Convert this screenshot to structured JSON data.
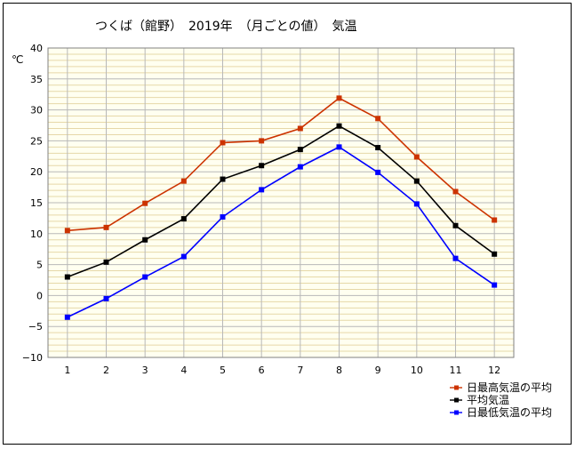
{
  "chart_data": {
    "type": "line",
    "title": "つくば（館野）　2019年　（月ごとの値）　気温",
    "ylabel": "℃",
    "xlabel": "",
    "categories": [
      "1",
      "2",
      "3",
      "4",
      "5",
      "6",
      "7",
      "8",
      "9",
      "10",
      "11",
      "12"
    ],
    "ylim": [
      -10,
      40
    ],
    "yticks": [
      40,
      35,
      30,
      25,
      20,
      15,
      10,
      5,
      0,
      -5,
      -10
    ],
    "grid": true,
    "legend_position": "bottom-right",
    "series": [
      {
        "name": "日最高気温の平均",
        "color": "#cc3300",
        "values": [
          10.5,
          11.0,
          14.9,
          18.5,
          24.7,
          25.0,
          27.0,
          31.9,
          28.6,
          22.4,
          16.8,
          12.2
        ]
      },
      {
        "name": "平均気温",
        "color": "#000000",
        "values": [
          3.0,
          5.4,
          9.0,
          12.4,
          18.8,
          21.0,
          23.6,
          27.4,
          23.9,
          18.5,
          11.3,
          6.7
        ]
      },
      {
        "name": "日最低気温の平均",
        "color": "#0000ff",
        "values": [
          -3.5,
          -0.5,
          3.0,
          6.3,
          12.7,
          17.1,
          20.8,
          24.0,
          19.9,
          14.8,
          6.0,
          1.7
        ]
      }
    ],
    "colors": {
      "plot_bg": "#fffff0",
      "grid_minor": "#e6d8a8",
      "grid_major": "#b8b8b8"
    }
  }
}
